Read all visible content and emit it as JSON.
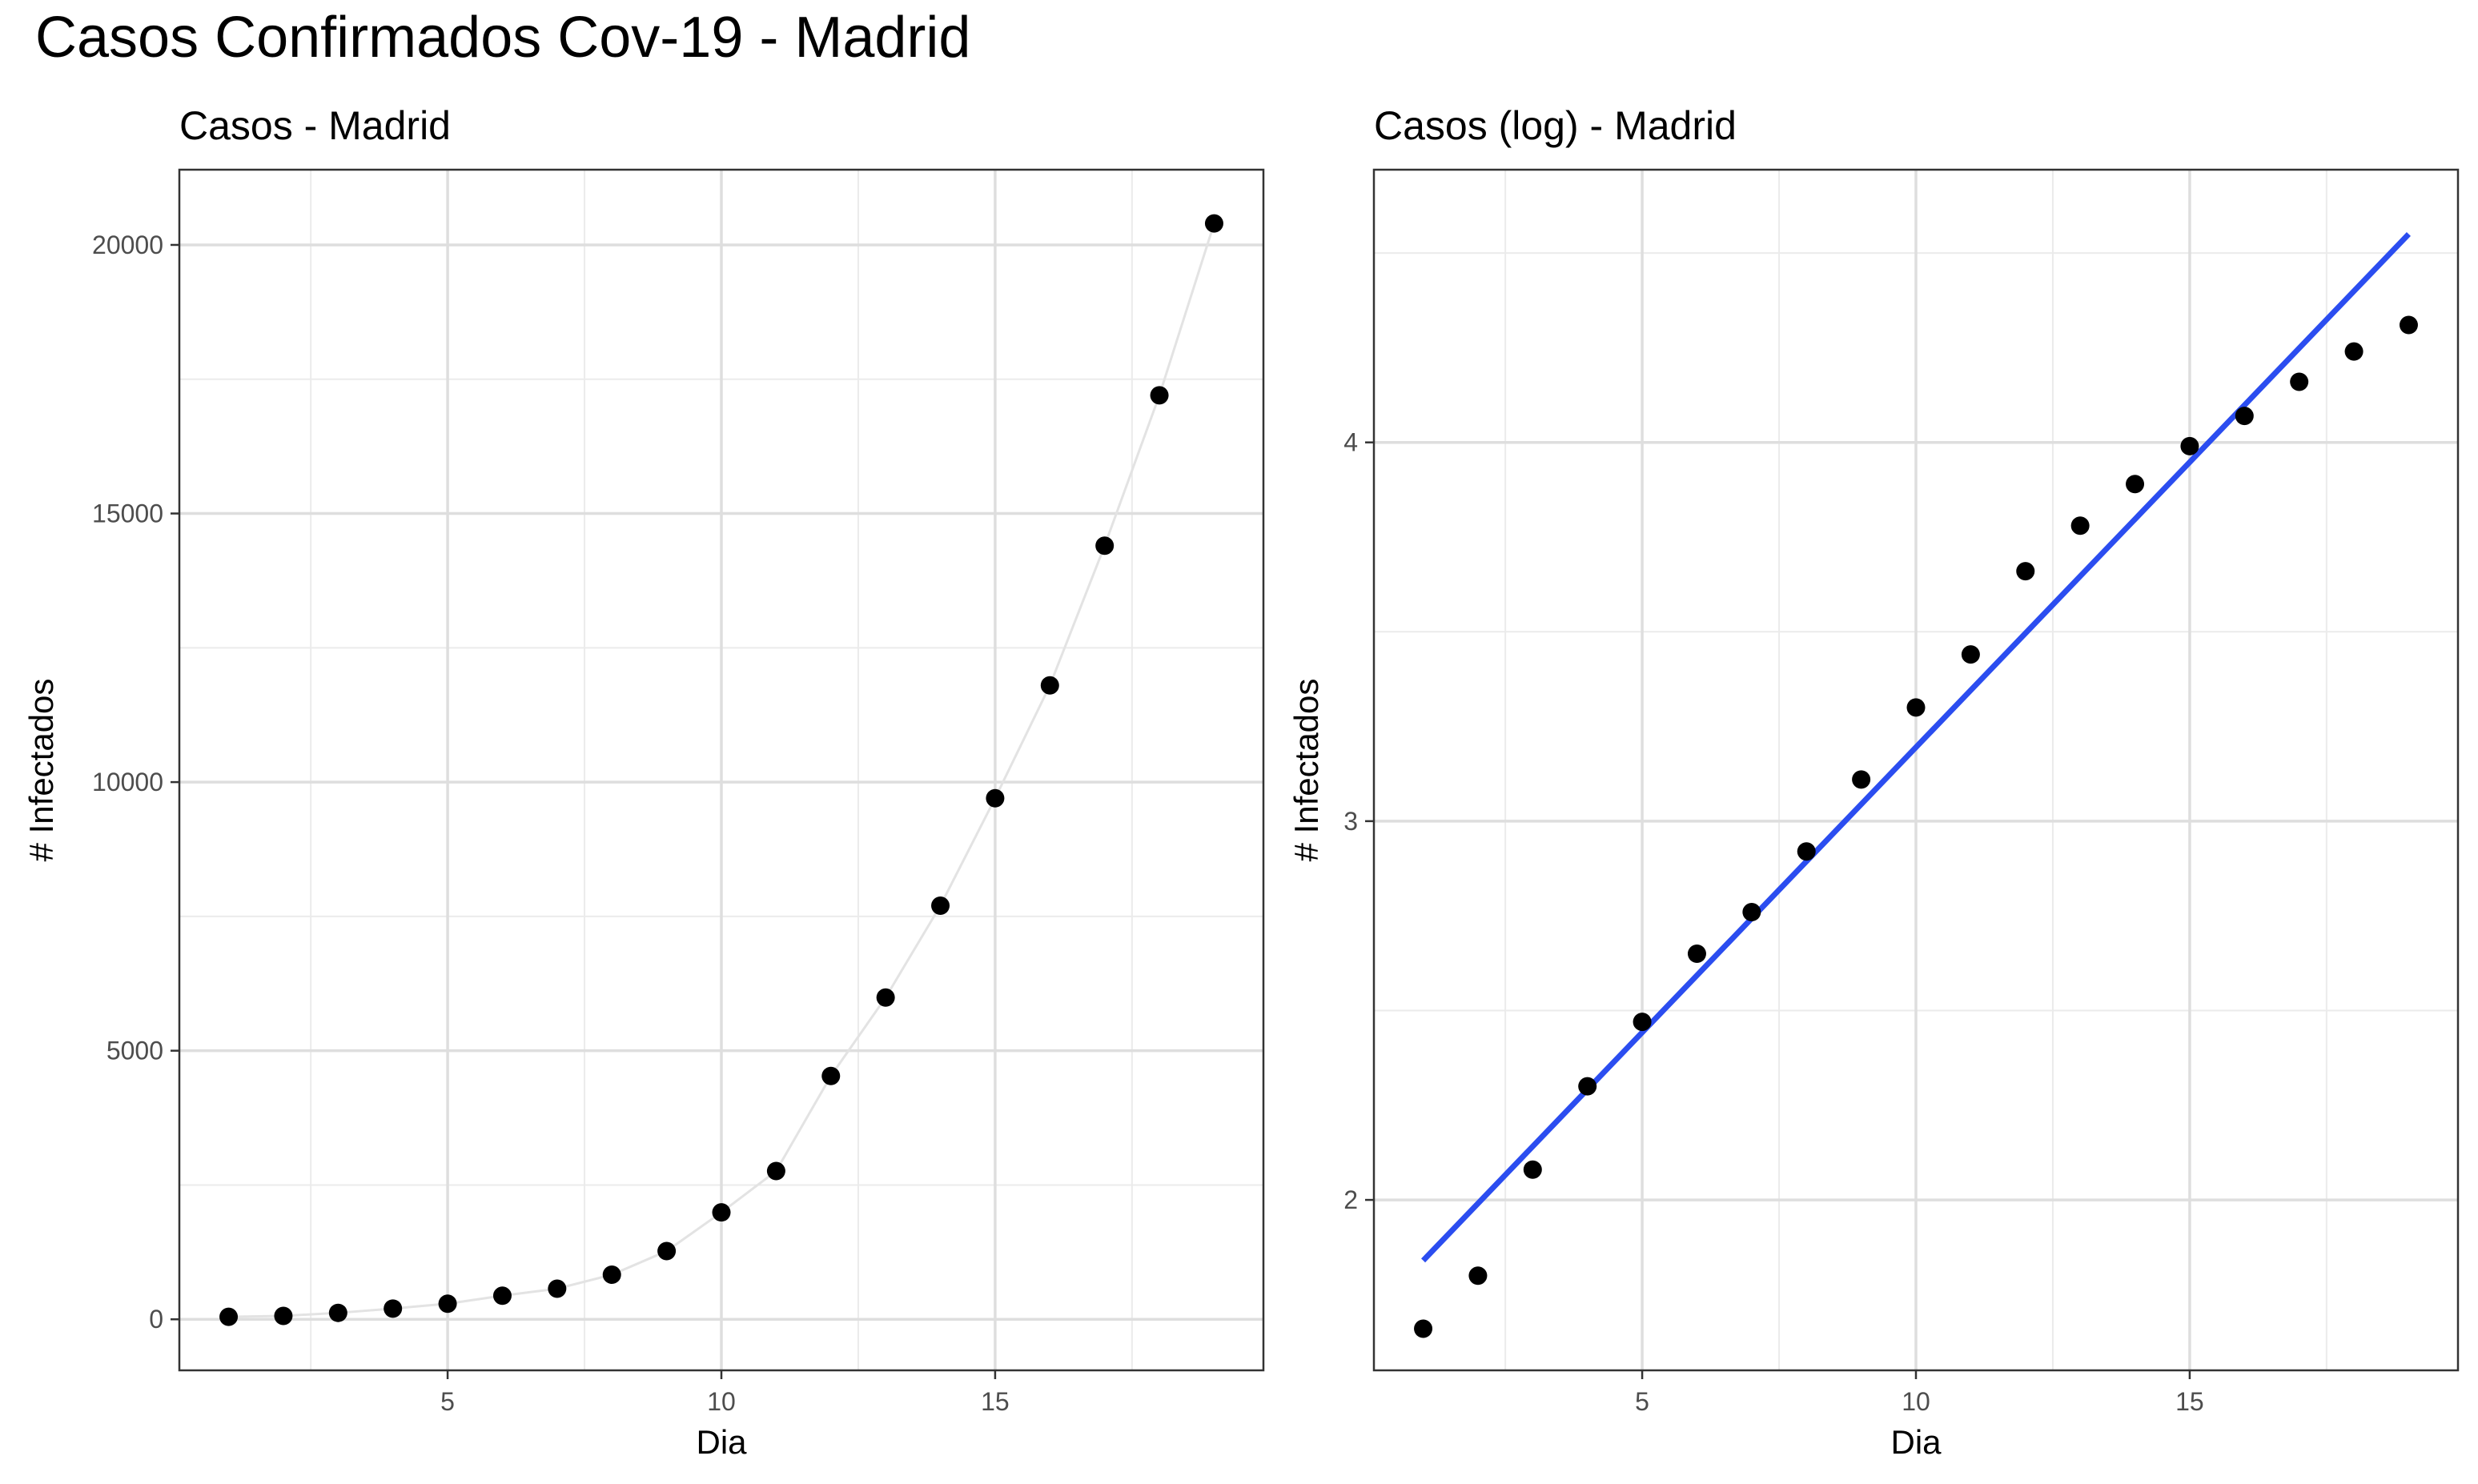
{
  "title": "Casos Confirmados Cov-19 - Madrid",
  "chart_data": [
    {
      "type": "scatter",
      "title": "Casos - Madrid",
      "xlabel": "Dia",
      "ylabel": "# Infectados",
      "xlim": [
        0.1,
        19.9
      ],
      "ylim": [
        -950,
        21400
      ],
      "xticks": [
        5,
        10,
        15
      ],
      "yticks": [
        0,
        5000,
        10000,
        15000,
        20000
      ],
      "tick_labels_x": [
        "5",
        "10",
        "15"
      ],
      "tick_labels_y": [
        "0",
        "5000",
        "10000",
        "15000",
        "20000"
      ],
      "grid": true,
      "connecting_line": true,
      "series": [
        {
          "x": [
            1,
            2,
            3,
            4,
            5,
            6,
            7,
            8,
            9,
            10,
            11,
            12,
            13,
            14,
            15,
            16,
            17,
            18,
            19
          ],
          "values": [
            46,
            64,
            120,
            200,
            290,
            440,
            570,
            830,
            1270,
            1990,
            2760,
            4530,
            5990,
            7700,
            9700,
            11800,
            14400,
            17200,
            20400
          ]
        }
      ]
    },
    {
      "type": "scatter",
      "title": "Casos (log) - Madrid",
      "xlabel": "Dia",
      "ylabel": "# Infectados",
      "xlim": [
        0.1,
        19.9
      ],
      "ylim": [
        1.55,
        4.72
      ],
      "xticks": [
        5,
        10,
        15
      ],
      "yticks": [
        2,
        3,
        4
      ],
      "tick_labels_x": [
        "5",
        "10",
        "15"
      ],
      "tick_labels_y": [
        "2",
        "3",
        "4"
      ],
      "grid": true,
      "series": [
        {
          "x": [
            1,
            2,
            3,
            4,
            5,
            6,
            7,
            8,
            9,
            10,
            11,
            12,
            13,
            14,
            15,
            16,
            17,
            18,
            19
          ],
          "values": [
            1.66,
            1.8,
            2.08,
            2.3,
            2.47,
            2.65,
            2.76,
            2.92,
            3.11,
            3.3,
            3.44,
            3.66,
            3.78,
            3.89,
            3.99,
            4.07,
            4.16,
            4.24,
            4.31
          ]
        }
      ],
      "fit_line": {
        "color": "#2b4df0",
        "x": [
          1,
          19
        ],
        "y": [
          1.84,
          4.55
        ]
      }
    }
  ]
}
